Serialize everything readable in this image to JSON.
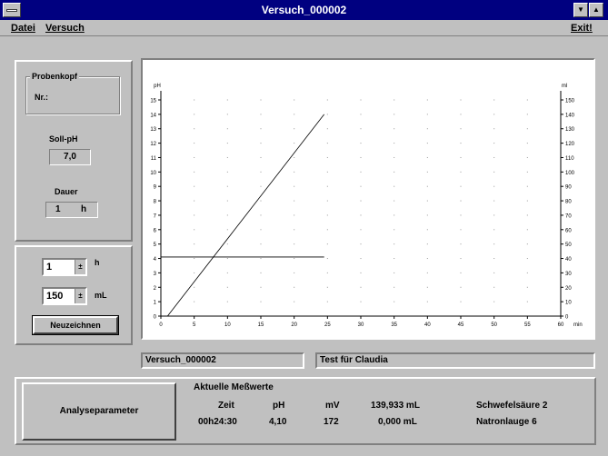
{
  "window": {
    "title": "Versuch_000002",
    "minimize_glyph": "▼",
    "maximize_glyph": "▲"
  },
  "menu": {
    "datei": "Datei",
    "versuch": "Versuch",
    "exit": "Exit!"
  },
  "probenkopf": {
    "group_label": "Probenkopf",
    "nr_label": "Nr.:"
  },
  "soll_ph": {
    "label": "Soll-pH",
    "value": "7,0"
  },
  "dauer": {
    "label": "Dauer",
    "value": "1",
    "unit": "h"
  },
  "settings": {
    "hours_value": "1",
    "hours_unit": "h",
    "ml_value": "150",
    "ml_unit": "mL",
    "redraw_button": "Neuzeichnen"
  },
  "info": {
    "experiment_name": "Versuch_000002",
    "comment": "Test für Claudia"
  },
  "analyse_button": "Analyseparameter",
  "measurements": {
    "group_label": "Aktuelle Meßwerte",
    "headers": [
      "Zeit",
      "pH",
      "mV",
      "139,933 mL",
      "Schwefelsäure 2"
    ],
    "values": [
      "00h24:30",
      "4,10",
      "172",
      "0,000 mL",
      "Natronlauge 6"
    ]
  },
  "chart_data": {
    "type": "line",
    "left_axis_label": "pH",
    "right_axis_label": "ml",
    "x_unit_label": "min",
    "x_range": [
      0,
      60
    ],
    "y_left_range": [
      0,
      15
    ],
    "y_right_range": [
      0,
      150
    ],
    "x_ticks": [
      "0",
      "5",
      "10",
      "15",
      "20",
      "25",
      "30",
      "35",
      "40",
      "45",
      "50",
      "55",
      "60"
    ],
    "y_left_ticks": [
      "0",
      "1",
      "2",
      "3",
      "4",
      "5",
      "6",
      "7",
      "8",
      "9",
      "10",
      "11",
      "12",
      "13",
      "14",
      "15"
    ],
    "y_right_ticks": [
      "0",
      "10",
      "20",
      "30",
      "40",
      "50",
      "60",
      "70",
      "80",
      "90",
      "100",
      "110",
      "120",
      "130",
      "140",
      "150"
    ],
    "grid": true,
    "series": [
      {
        "axis": "left",
        "x": [
          0,
          24.5
        ],
        "y": [
          4.1,
          4.1
        ]
      },
      {
        "axis": "right",
        "x": [
          1,
          24.5
        ],
        "y": [
          0,
          140
        ]
      }
    ]
  }
}
